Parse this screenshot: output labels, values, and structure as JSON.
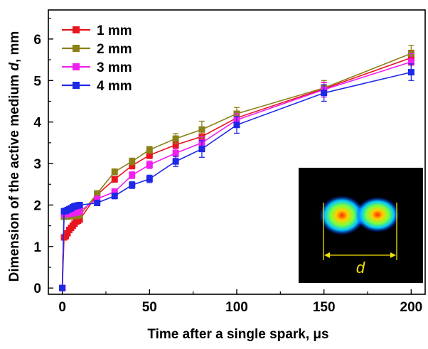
{
  "chart_data": {
    "type": "line",
    "title": "",
    "xlabel": "Time after a single spark, μs",
    "ylabel_prefix": "Dimension of the active medium ",
    "ylabel_var": "d",
    "ylabel_suffix": ", mm",
    "xlim": [
      -8,
      208
    ],
    "ylim": [
      -0.15,
      6.7
    ],
    "xticks": [
      0,
      50,
      100,
      150,
      200
    ],
    "yticks": [
      0,
      1,
      2,
      3,
      4,
      5,
      6
    ],
    "grid": false,
    "legend_position": "top-left",
    "series": [
      {
        "name": "1 mm",
        "color": "#e8141e",
        "x": [
          0,
          1,
          2,
          3,
          4,
          5,
          6,
          7,
          8,
          9,
          10,
          20,
          30,
          40,
          50,
          65,
          80,
          100,
          150,
          200
        ],
        "y": [
          0,
          1.22,
          1.25,
          1.32,
          1.4,
          1.45,
          1.5,
          1.55,
          1.6,
          1.62,
          1.65,
          2.25,
          2.62,
          2.95,
          3.2,
          3.45,
          3.65,
          4.1,
          4.8,
          5.55
        ],
        "err": [
          0,
          0.04,
          0.04,
          0.05,
          0.05,
          0.05,
          0.05,
          0.05,
          0.05,
          0.05,
          0.05,
          0.06,
          0.07,
          0.08,
          0.08,
          0.1,
          0.12,
          0.15,
          0.15,
          0.18
        ]
      },
      {
        "name": "2 mm",
        "color": "#8c8018",
        "x": [
          0,
          1,
          2,
          3,
          4,
          5,
          6,
          7,
          8,
          9,
          10,
          20,
          30,
          40,
          50,
          65,
          80,
          100,
          150,
          200
        ],
        "y": [
          0,
          1.72,
          1.72,
          1.73,
          1.73,
          1.73,
          1.74,
          1.74,
          1.74,
          1.75,
          1.75,
          2.28,
          2.8,
          3.05,
          3.33,
          3.6,
          3.82,
          4.2,
          4.82,
          5.65
        ],
        "err": [
          0,
          0.04,
          0.04,
          0.04,
          0.04,
          0.04,
          0.04,
          0.04,
          0.04,
          0.04,
          0.04,
          0.06,
          0.07,
          0.08,
          0.08,
          0.12,
          0.2,
          0.15,
          0.18,
          0.2
        ]
      },
      {
        "name": "3 mm",
        "color": "#f01ef0",
        "x": [
          0,
          1,
          2,
          3,
          4,
          5,
          6,
          7,
          8,
          9,
          10,
          20,
          30,
          40,
          50,
          65,
          80,
          100,
          150,
          200
        ],
        "y": [
          0,
          1.78,
          1.78,
          1.79,
          1.79,
          1.8,
          1.8,
          1.81,
          1.82,
          1.83,
          1.85,
          2.15,
          2.32,
          2.72,
          2.97,
          3.25,
          3.5,
          4.05,
          4.78,
          5.45
        ],
        "err": [
          0,
          0.04,
          0.04,
          0.04,
          0.04,
          0.04,
          0.04,
          0.04,
          0.04,
          0.04,
          0.04,
          0.06,
          0.07,
          0.08,
          0.09,
          0.12,
          0.15,
          0.15,
          0.18,
          0.2
        ]
      },
      {
        "name": "4 mm",
        "color": "#1e28e6",
        "x": [
          0,
          1,
          2,
          3,
          4,
          5,
          6,
          7,
          8,
          9,
          10,
          20,
          30,
          40,
          50,
          65,
          80,
          100,
          150,
          200
        ],
        "y": [
          0,
          1.85,
          1.86,
          1.88,
          1.9,
          1.92,
          1.95,
          1.97,
          1.98,
          1.99,
          2.0,
          2.05,
          2.22,
          2.48,
          2.63,
          3.05,
          3.35,
          3.93,
          4.7,
          5.2
        ],
        "err": [
          0,
          0.05,
          0.05,
          0.05,
          0.05,
          0.05,
          0.05,
          0.05,
          0.05,
          0.05,
          0.05,
          0.06,
          0.07,
          0.08,
          0.09,
          0.12,
          0.2,
          0.2,
          0.2,
          0.2
        ]
      }
    ],
    "inset": {
      "label": "d"
    }
  }
}
